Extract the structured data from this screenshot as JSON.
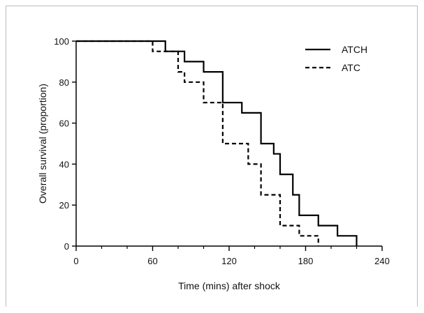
{
  "chart_data": {
    "type": "line",
    "title": "",
    "xlabel": "Time (mins) after shock",
    "ylabel": "Overall survival (proportion)",
    "xlim": [
      0,
      240
    ],
    "ylim": [
      0,
      100
    ],
    "x_ticks": [
      0,
      60,
      120,
      180,
      240
    ],
    "y_ticks": [
      0,
      20,
      40,
      60,
      80,
      100
    ],
    "x_minor_step": 20,
    "grid": false,
    "legend_position": "top-right",
    "step": true,
    "series": [
      {
        "name": "ATCH",
        "line_style": "solid",
        "color": "#000000",
        "x": [
          0,
          70,
          85,
          100,
          115,
          130,
          145,
          155,
          160,
          170,
          175,
          190,
          205,
          220
        ],
        "y": [
          100,
          95,
          90,
          85,
          70,
          65,
          50,
          45,
          35,
          25,
          15,
          10,
          5,
          0
        ]
      },
      {
        "name": "ATC",
        "line_style": "dashed",
        "color": "#000000",
        "x": [
          0,
          60,
          80,
          85,
          100,
          115,
          135,
          145,
          160,
          175,
          190
        ],
        "y": [
          100,
          95,
          85,
          80,
          70,
          50,
          40,
          25,
          10,
          5,
          0
        ]
      }
    ]
  }
}
